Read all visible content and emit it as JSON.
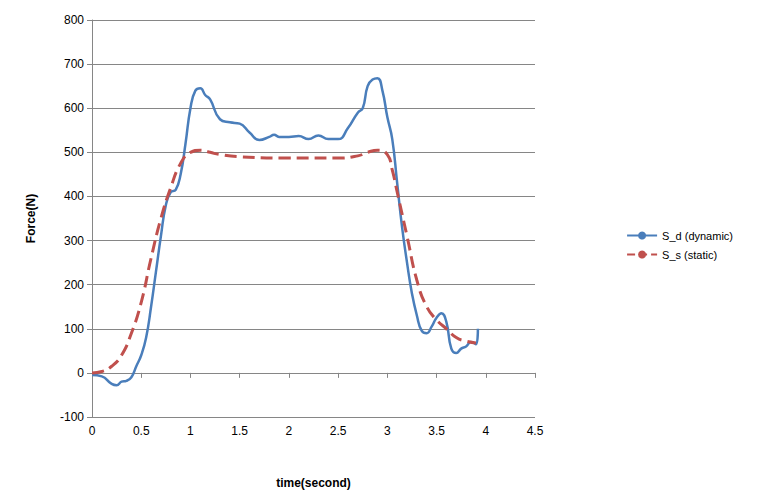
{
  "chart_data": {
    "type": "line",
    "x_label": "time(second)",
    "y_label": "Force(N)",
    "xlim": [
      0,
      4.5
    ],
    "xticks": [
      0,
      0.5,
      1,
      1.5,
      2,
      2.5,
      3,
      3.5,
      4,
      4.5
    ],
    "ylim": [
      -100,
      800
    ],
    "yticks": [
      -100,
      0,
      100,
      200,
      300,
      400,
      500,
      600,
      700,
      800
    ],
    "grid": true,
    "legend": "right",
    "series": [
      {
        "name": "S_d (dynamic)",
        "color": "#4a7ebb",
        "line_style": "solid",
        "x": [
          0,
          0.1,
          0.2,
          0.25,
          0.3,
          0.35,
          0.4,
          0.45,
          0.5,
          0.55,
          0.6,
          0.65,
          0.7,
          0.75,
          0.8,
          0.85,
          0.9,
          0.95,
          1.0,
          1.05,
          1.1,
          1.15,
          1.2,
          1.3,
          1.4,
          1.5,
          1.6,
          1.7,
          1.8,
          1.85,
          1.9,
          2.0,
          2.1,
          2.2,
          2.3,
          2.4,
          2.5,
          2.6,
          2.7,
          2.75,
          2.8,
          2.85,
          2.9,
          2.95,
          3.0,
          3.05,
          3.1,
          3.15,
          3.2,
          3.25,
          3.3,
          3.35,
          3.4,
          3.45,
          3.5,
          3.55,
          3.6,
          3.65,
          3.7,
          3.75,
          3.8,
          3.85,
          3.9,
          3.92
        ],
        "values": [
          -5,
          -8,
          -25,
          -28,
          -20,
          -18,
          -10,
          15,
          40,
          80,
          150,
          230,
          310,
          380,
          410,
          415,
          450,
          520,
          600,
          640,
          645,
          630,
          620,
          575,
          568,
          565,
          545,
          528,
          535,
          540,
          535,
          535,
          537,
          530,
          538,
          530,
          530,
          555,
          590,
          600,
          650,
          665,
          668,
          640,
          580,
          530,
          430,
          330,
          250,
          180,
          130,
          95,
          90,
          105,
          125,
          135,
          115,
          55,
          45,
          55,
          60,
          70,
          65,
          100
        ]
      },
      {
        "name": "S_s (static)",
        "color": "#c0504d",
        "line_style": "dashed",
        "x": [
          0,
          0.1,
          0.2,
          0.3,
          0.4,
          0.5,
          0.6,
          0.7,
          0.8,
          0.9,
          1.0,
          1.1,
          1.2,
          1.3,
          1.5,
          2.0,
          2.5,
          2.7,
          2.8,
          2.9,
          3.0,
          3.05,
          3.1,
          3.2,
          3.3,
          3.4,
          3.5,
          3.6,
          3.7,
          3.8,
          3.9
        ],
        "values": [
          0,
          3,
          15,
          40,
          90,
          160,
          260,
          350,
          420,
          475,
          500,
          505,
          500,
          495,
          490,
          487,
          487,
          492,
          500,
          505,
          495,
          460,
          410,
          310,
          210,
          150,
          120,
          100,
          80,
          72,
          68
        ]
      }
    ]
  }
}
